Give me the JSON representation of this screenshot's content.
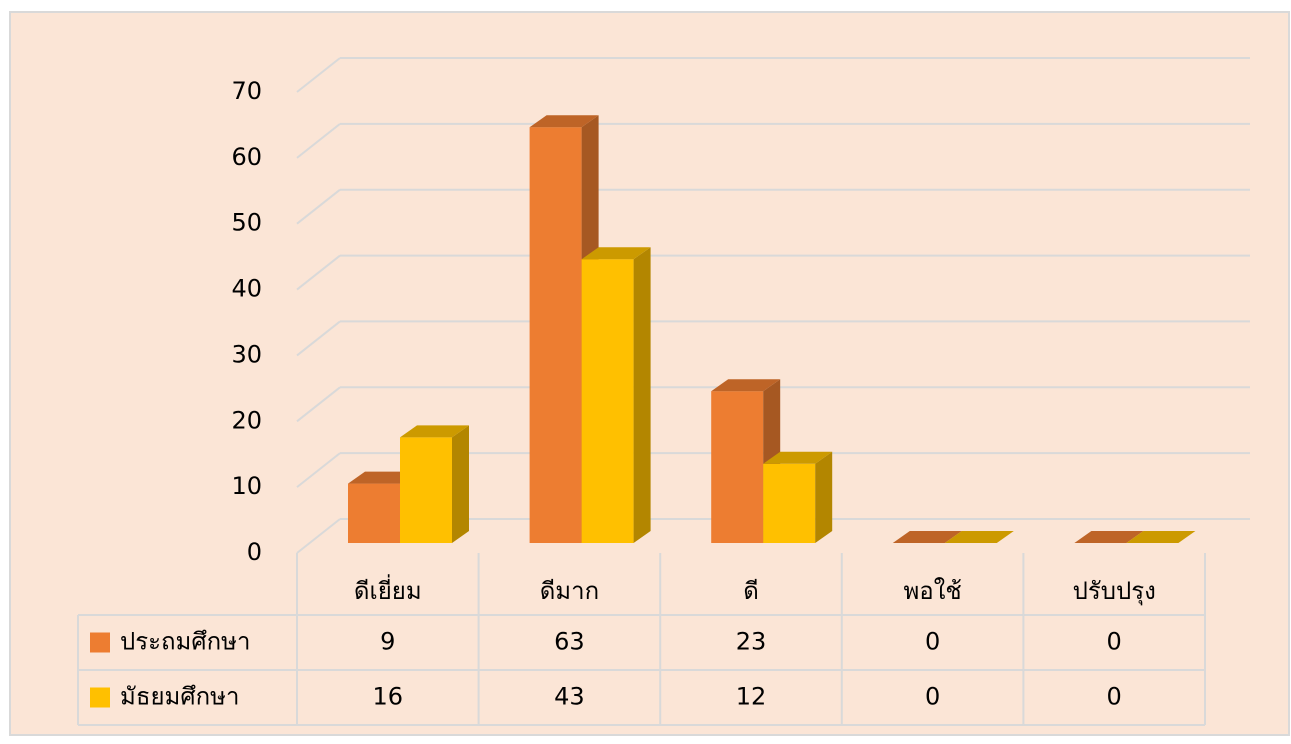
{
  "chart_data": {
    "type": "bar",
    "categories": [
      "ดีเยี่ยม",
      "ดีมาก",
      "ดี",
      "พอใช้",
      "ปรับปรุง"
    ],
    "series": [
      {
        "name": "ประถมศึกษา",
        "color": "#ed7d31",
        "values": [
          9,
          63,
          23,
          0,
          0
        ]
      },
      {
        "name": "มัธยมศึกษา",
        "color": "#ffc000",
        "values": [
          16,
          43,
          12,
          0,
          0
        ]
      }
    ],
    "ylim": [
      0,
      70
    ],
    "yticks": [
      0,
      10,
      20,
      30,
      40,
      50,
      60,
      70
    ],
    "grid": true
  }
}
